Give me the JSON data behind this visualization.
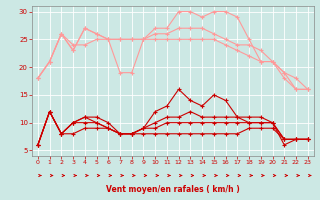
{
  "bg_color": "#cce8e4",
  "grid_color": "#ffffff",
  "xlabel": "Vent moyen/en rafales ( km/h )",
  "xlabel_color": "#cc0000",
  "tick_color": "#cc0000",
  "xlim": [
    -0.5,
    23.5
  ],
  "ylim": [
    4,
    31
  ],
  "yticks": [
    5,
    10,
    15,
    20,
    25,
    30
  ],
  "xticks": [
    0,
    1,
    2,
    3,
    4,
    5,
    6,
    7,
    8,
    9,
    10,
    11,
    12,
    13,
    14,
    15,
    16,
    17,
    18,
    19,
    20,
    21,
    22,
    23
  ],
  "series_light": [
    [
      18,
      21,
      26,
      23,
      27,
      26,
      25,
      19,
      19,
      25,
      27,
      27,
      30,
      30,
      29,
      30,
      30,
      29,
      25,
      21,
      21,
      18,
      16,
      16
    ],
    [
      18,
      21,
      26,
      23,
      27,
      26,
      25,
      25,
      25,
      25,
      26,
      26,
      27,
      27,
      27,
      26,
      25,
      24,
      24,
      23,
      21,
      19,
      16,
      16
    ],
    [
      18,
      21,
      26,
      24,
      24,
      25,
      25,
      25,
      25,
      25,
      25,
      25,
      25,
      25,
      25,
      25,
      24,
      23,
      22,
      21,
      21,
      19,
      18,
      16
    ]
  ],
  "series_dark": [
    [
      6,
      12,
      8,
      10,
      11,
      10,
      9,
      8,
      8,
      9,
      12,
      13,
      16,
      14,
      13,
      15,
      14,
      11,
      10,
      10,
      10,
      6,
      7,
      7
    ],
    [
      6,
      12,
      8,
      10,
      11,
      11,
      10,
      8,
      8,
      9,
      10,
      11,
      11,
      12,
      11,
      11,
      11,
      11,
      11,
      11,
      10,
      7,
      7,
      7
    ],
    [
      6,
      12,
      8,
      10,
      10,
      10,
      9,
      8,
      8,
      9,
      9,
      10,
      10,
      10,
      10,
      10,
      10,
      10,
      10,
      10,
      10,
      7,
      7,
      7
    ],
    [
      6,
      12,
      8,
      8,
      9,
      9,
      9,
      8,
      8,
      8,
      8,
      8,
      8,
      8,
      8,
      8,
      8,
      8,
      9,
      9,
      9,
      7,
      7,
      7
    ]
  ],
  "light_color": "#ff9999",
  "dark_color": "#cc0000",
  "arrow_color": "#cc0000",
  "marker": "+",
  "marker_size": 3.0,
  "linewidth": 0.8
}
